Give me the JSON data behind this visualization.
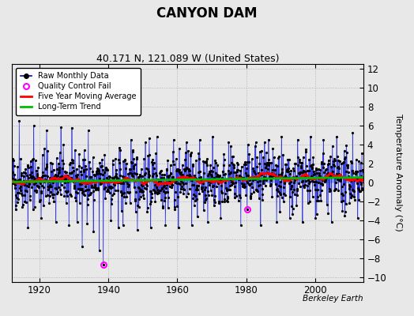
{
  "title": "CANYON DAM",
  "subtitle": "40.171 N, 121.089 W (United States)",
  "ylabel": "Temperature Anomaly (°C)",
  "watermark": "Berkeley Earth",
  "ylim": [
    -10.5,
    12.5
  ],
  "yticks": [
    -10,
    -8,
    -6,
    -4,
    -2,
    0,
    2,
    4,
    6,
    8,
    10,
    12
  ],
  "year_start": 1912,
  "year_end": 2014,
  "xticks": [
    1920,
    1940,
    1960,
    1980,
    2000
  ],
  "raw_color": "#0000cc",
  "raw_stem_color": "#6688ff",
  "ma_color": "#ff0000",
  "trend_color": "#00bb00",
  "qc_color": "#ff00ff",
  "bg_color": "#e8e8e8",
  "plot_bg_color": "#e8e8e8",
  "seed": 42,
  "ma_window": 60,
  "qc_year": 1938,
  "qc_month": 6,
  "qc_value": -8.7,
  "qc2_year": 1980,
  "qc2_month": 3,
  "qc2_value": -2.9
}
